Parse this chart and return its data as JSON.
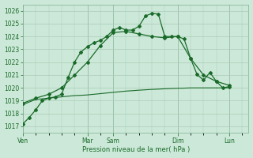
{
  "background_color": "#cce8d8",
  "grid_color": "#aaccb8",
  "line_color": "#1a6b2a",
  "xlabel": "Pression niveau de la mer( hPa )",
  "ylim": [
    1016.5,
    1026.5
  ],
  "ytick_vals": [
    1017,
    1018,
    1019,
    1020,
    1021,
    1022,
    1023,
    1024,
    1025,
    1026
  ],
  "day_labels": [
    "Ven",
    "Mar",
    "Sam",
    "Dim",
    "Lun"
  ],
  "day_positions": [
    0,
    60,
    84,
    144,
    192
  ],
  "xlim": [
    0,
    210
  ],
  "line1_x": [
    0,
    6,
    12,
    18,
    24,
    30,
    36,
    42,
    48,
    54,
    60,
    66,
    72,
    78,
    84,
    90,
    96,
    102,
    108,
    114,
    120,
    126,
    132,
    138,
    144,
    150,
    156,
    162,
    168,
    174,
    180,
    186,
    192
  ],
  "line1_y": [
    1018.7,
    1018.9,
    1019.1,
    1019.15,
    1019.2,
    1019.25,
    1019.3,
    1019.35,
    1019.4,
    1019.42,
    1019.45,
    1019.5,
    1019.55,
    1019.6,
    1019.65,
    1019.7,
    1019.75,
    1019.78,
    1019.82,
    1019.85,
    1019.88,
    1019.9,
    1019.93,
    1019.95,
    1019.97,
    1019.98,
    1020.0,
    1020.0,
    1020.0,
    1020.0,
    1020.0,
    1020.0,
    1020.0
  ],
  "line2_x": [
    0,
    12,
    24,
    36,
    48,
    60,
    72,
    84,
    96,
    108,
    120,
    132,
    144,
    156,
    168,
    180,
    192
  ],
  "line2_y": [
    1018.8,
    1019.2,
    1019.5,
    1020.0,
    1021.0,
    1022.0,
    1023.3,
    1024.3,
    1024.4,
    1024.2,
    1024.0,
    1023.9,
    1024.0,
    1022.3,
    1021.0,
    1020.5,
    1020.2
  ],
  "line3_x": [
    0,
    6,
    12,
    18,
    24,
    30,
    36,
    42,
    48,
    54,
    60,
    66,
    72,
    78,
    84,
    90,
    96,
    102,
    108,
    114,
    120,
    126,
    132,
    138,
    144,
    150,
    156,
    162,
    168,
    174,
    180,
    186,
    192
  ],
  "line3_y": [
    1017.2,
    1017.7,
    1018.3,
    1019.0,
    1019.2,
    1019.3,
    1019.5,
    1020.8,
    1022.0,
    1022.8,
    1023.2,
    1023.5,
    1023.7,
    1024.0,
    1024.5,
    1024.7,
    1024.5,
    1024.5,
    1024.8,
    1025.6,
    1025.8,
    1025.75,
    1024.0,
    1024.0,
    1024.0,
    1023.8,
    1022.3,
    1021.05,
    1020.6,
    1021.2,
    1020.5,
    1020.0,
    1020.1
  ]
}
